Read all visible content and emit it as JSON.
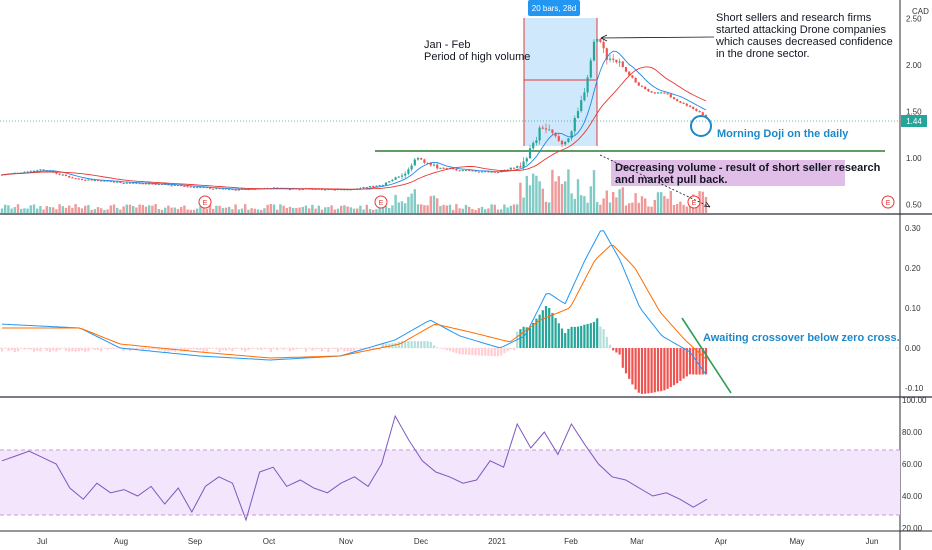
{
  "chart_data": [
    {
      "type": "candlestick",
      "pane": "price",
      "currency": "CAD",
      "last_price": 1.44,
      "ylim": [
        0.4,
        2.7
      ],
      "yticks": [
        "2.50",
        "2.00",
        "1.50",
        "1.00",
        "0.50"
      ],
      "xticks": [
        "Jul",
        "Aug",
        "Sep",
        "Oct",
        "Nov",
        "Dec",
        "2021",
        "Feb",
        "Mar",
        "Apr",
        "May",
        "Jun"
      ],
      "close_approx": {
        "dates": [
          "Jun 20",
          "Jul 1",
          "Jul 15",
          "Aug 1",
          "Aug 15",
          "Sep 1",
          "Sep 15",
          "Oct 1",
          "Oct 15",
          "Nov 1",
          "Nov 15",
          "Nov 25",
          "Dec 1",
          "Dec 15",
          "Jan 1",
          "Jan 10",
          "Jan 20",
          "Jan 27",
          "Feb 1",
          "Feb 5",
          "Feb 10",
          "Feb 15",
          "Feb 20",
          "Mar 1",
          "Mar 10",
          "Mar 20",
          "Mar 25"
        ],
        "values": [
          0.82,
          0.88,
          0.78,
          0.74,
          0.72,
          0.69,
          0.66,
          0.68,
          0.67,
          0.66,
          0.72,
          1.0,
          0.92,
          0.86,
          0.85,
          1.05,
          1.35,
          1.15,
          1.3,
          1.7,
          2.35,
          2.1,
          2.0,
          1.75,
          1.65,
          1.55,
          1.44
        ]
      },
      "range_tool": {
        "label": "20 bars, 28d",
        "from": "Jan 10",
        "to": "Feb 10"
      },
      "horizontal_line_level": 1.1,
      "annotations": [
        "Jan - Feb",
        "Period of high volume",
        "Short sellers and research firms",
        "started attacking Drone companies",
        "which causes decreased confidence",
        "in the drone sector.",
        "Morning Doji on the daily",
        "Decreasing volume - result of short seller research",
        "and market pull back."
      ],
      "earnings_marker": "E"
    },
    {
      "type": "macd",
      "pane": "macd",
      "ylim": [
        -0.12,
        0.32
      ],
      "yticks": [
        "0.30",
        "0.20",
        "0.10",
        "0.00",
        "-0.10"
      ],
      "annotation": "Awaiting crossover below zero cross."
    },
    {
      "type": "rsi",
      "pane": "rsi",
      "ylim": [
        20,
        100
      ],
      "band": [
        30,
        70
      ],
      "yticks": [
        "100.00",
        "80.00",
        "60.00",
        "40.00",
        "20.00"
      ],
      "values_approx": [
        62,
        65,
        68,
        64,
        60,
        45,
        38,
        48,
        42,
        44,
        40,
        46,
        35,
        45,
        30,
        46,
        52,
        48,
        25,
        55,
        58,
        46,
        50,
        45,
        42,
        48,
        52,
        46,
        60,
        90,
        75,
        62,
        55,
        52,
        48,
        50,
        62,
        58,
        85,
        70,
        80,
        66,
        85,
        72,
        60,
        52,
        50,
        45,
        40,
        42,
        38,
        33,
        38
      ]
    }
  ]
}
